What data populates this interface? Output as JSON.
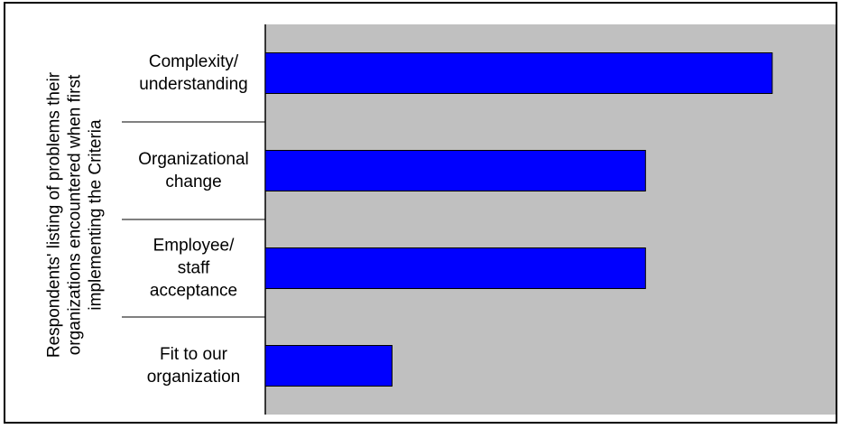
{
  "chart_data": {
    "type": "bar",
    "orientation": "horizontal",
    "title": "",
    "xlabel": "",
    "ylabel": "Respondents' listing of problems their\norganizations encountered when first\nimplementing the Criteria",
    "categories": [
      "Complexity/\nunderstanding",
      "Organizational\nchange",
      "Employee/\nstaff\nacceptance",
      "Fit to our\norganization"
    ],
    "values": [
      80,
      60,
      60,
      20
    ],
    "xlim": [
      0,
      90
    ],
    "grid": false,
    "legend": "none"
  },
  "colors": {
    "bar_fill": "#0000ff",
    "bar_stroke": "#000000",
    "plot_background": "#c0c0c0",
    "frame": "#000000"
  }
}
